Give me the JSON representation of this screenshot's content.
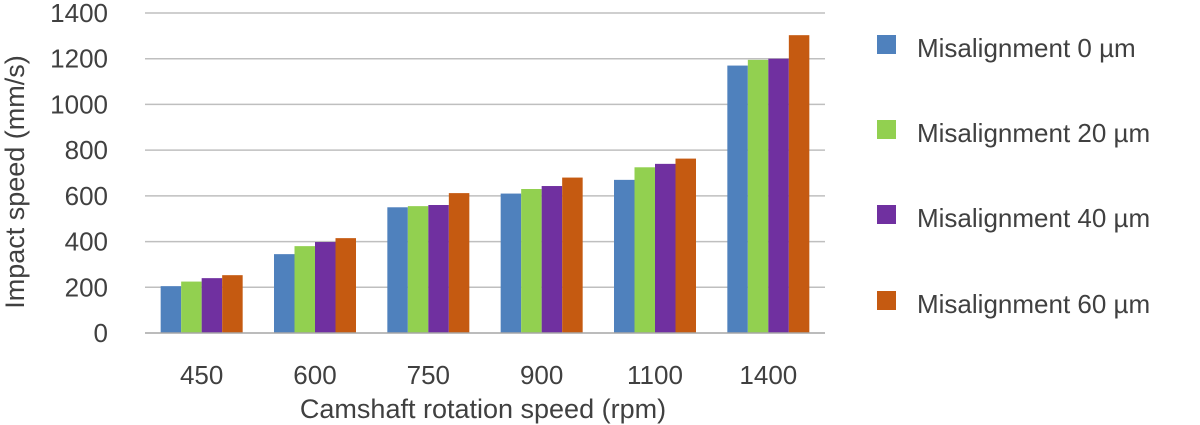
{
  "colors": {
    "series": [
      "#4f81bd",
      "#92d050",
      "#7030a0",
      "#c55a11"
    ],
    "grid": "#bfbfbf",
    "axis": "#a6a6a6",
    "text": "#404040"
  },
  "chart_data": {
    "type": "bar",
    "title": "",
    "xlabel": "Camshaft rotation speed (rpm)",
    "ylabel": "Impact speed (mm/s)",
    "ylim": [
      0,
      1400
    ],
    "yticks": [
      0,
      200,
      400,
      600,
      800,
      1000,
      1200,
      1400
    ],
    "grid": true,
    "legend_position": "right",
    "categories": [
      "450",
      "600",
      "750",
      "900",
      "1100",
      "1400"
    ],
    "series": [
      {
        "name": "Misalignment 0 µm",
        "values": [
          205,
          345,
          550,
          610,
          670,
          1170
        ]
      },
      {
        "name": "Misalignment 20 µm",
        "values": [
          225,
          380,
          555,
          630,
          725,
          1195
        ]
      },
      {
        "name": "Misalignment 40 µm",
        "values": [
          240,
          398,
          560,
          643,
          740,
          1200
        ]
      },
      {
        "name": "Misalignment 60 µm",
        "values": [
          253,
          415,
          612,
          680,
          763,
          1303
        ]
      }
    ]
  }
}
